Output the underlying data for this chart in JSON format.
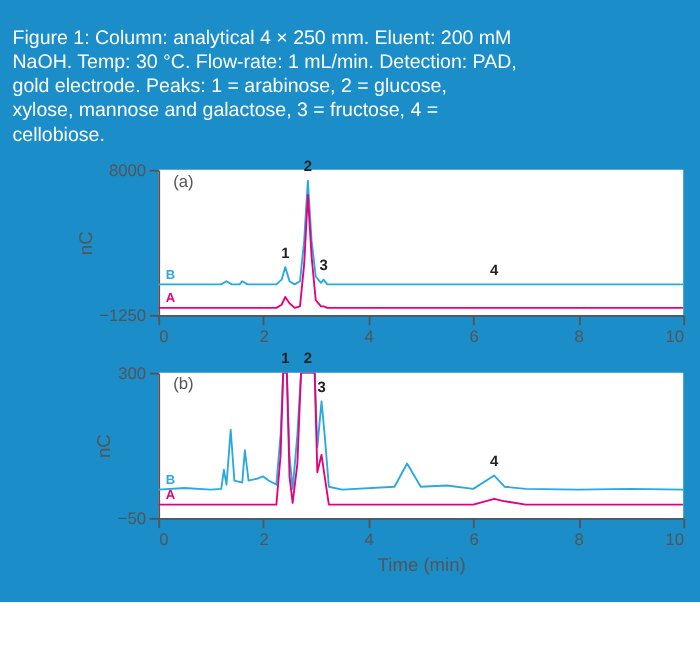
{
  "chart_data": [
    {
      "type": "line",
      "title": "Figure 1: Column: analytical 4 × 250 mm. Eluent: 200 mM NaOH. Temp: 30 °C. Flow-rate: 1 mL/min. Detection: PAD, gold electrode. Peaks: 1 = arabinose, 2 = glucose, xylose, mannose and galactose, 3 = fructose, 4 = cellobiose.",
      "ylabel": "nC",
      "x": [
        0,
        1.2,
        1.3,
        1.4,
        1.55,
        1.6,
        1.7,
        2.25,
        2.35,
        2.42,
        2.5,
        2.6,
        2.7,
        2.78,
        2.85,
        2.92,
        3.0,
        3.1,
        3.15,
        3.22,
        3.35,
        6.4,
        10
      ],
      "series": [
        {
          "name": "B",
          "color": "#29a9e0",
          "values": [
            700,
            700,
            900,
            700,
            700,
            900,
            700,
            700,
            1000,
            1800,
            900,
            700,
            900,
            3500,
            7300,
            3500,
            1200,
            800,
            1000,
            700,
            700,
            700,
            700
          ]
        },
        {
          "name": "A",
          "color": "#e6007e",
          "values": [
            -800,
            -800,
            -800,
            -800,
            -800,
            -800,
            -800,
            -800,
            -600,
            -100,
            -500,
            -800,
            -700,
            2000,
            6400,
            2500,
            -300,
            -700,
            -700,
            -800,
            -800,
            -800,
            -800
          ]
        }
      ],
      "xlim": [
        0,
        10
      ],
      "xticks": [
        0,
        2,
        4,
        6,
        8,
        10
      ],
      "ylim": [
        -1250,
        8000
      ],
      "yticks": [
        -1250,
        8000
      ],
      "grid": false,
      "annotations": [
        "(a)",
        {
          "text": "1",
          "x": 2.42,
          "y": 1800
        },
        {
          "text": "2",
          "x": 2.85,
          "y": 7300
        },
        {
          "text": "3",
          "x": 3.15,
          "y": 1000
        },
        {
          "text": "4",
          "x": 6.4,
          "y": 700
        }
      ]
    },
    {
      "type": "line",
      "xlabel": "Time (min)",
      "ylabel": "nC",
      "x": [
        0,
        0.5,
        1.0,
        1.2,
        1.25,
        1.3,
        1.38,
        1.45,
        1.6,
        1.65,
        1.72,
        1.9,
        2.0,
        2.1,
        2.25,
        2.33,
        2.38,
        2.45,
        2.5,
        2.56,
        2.65,
        2.72,
        2.85,
        2.98,
        3.03,
        3.11,
        3.17,
        3.25,
        3.5,
        4.5,
        4.74,
        5.0,
        5.5,
        6.0,
        6.4,
        6.6,
        7.0,
        8.0,
        9.0,
        10
      ],
      "series": [
        {
          "name": "B",
          "color": "#29a9e0",
          "values": [
            18,
            22,
            18,
            20,
            66,
            30,
            162,
            40,
            35,
            113,
            40,
            45,
            50,
            40,
            30,
            150,
            300,
            300,
            100,
            20,
            150,
            300,
            300,
            300,
            120,
            231,
            150,
            25,
            18,
            25,
            81,
            25,
            28,
            20,
            52,
            25,
            20,
            18,
            20,
            18
          ]
        },
        {
          "name": "A",
          "color": "#e6007e",
          "values": [
            -18,
            -18,
            -18,
            -18,
            -18,
            -18,
            -18,
            -18,
            -18,
            -18,
            -18,
            -18,
            -18,
            -18,
            -18,
            100,
            300,
            300,
            50,
            -14,
            80,
            300,
            300,
            300,
            60,
            102,
            50,
            -18,
            -18,
            -18,
            -18,
            -18,
            -18,
            -18,
            -4,
            -10,
            -18,
            -18,
            -18,
            -18
          ]
        }
      ],
      "xlim": [
        0,
        10
      ],
      "xticks": [
        0,
        2,
        4,
        6,
        8,
        10
      ],
      "ylim": [
        -50,
        300
      ],
      "yticks": [
        -50,
        300
      ],
      "grid": false,
      "annotations": [
        "(b)",
        {
          "text": "1",
          "x": 2.42,
          "y": 300
        },
        {
          "text": "2",
          "x": 2.85,
          "y": 300
        },
        {
          "text": "3",
          "x": 3.11,
          "y": 231
        },
        {
          "text": "4",
          "x": 6.4,
          "y": 52
        }
      ]
    }
  ]
}
